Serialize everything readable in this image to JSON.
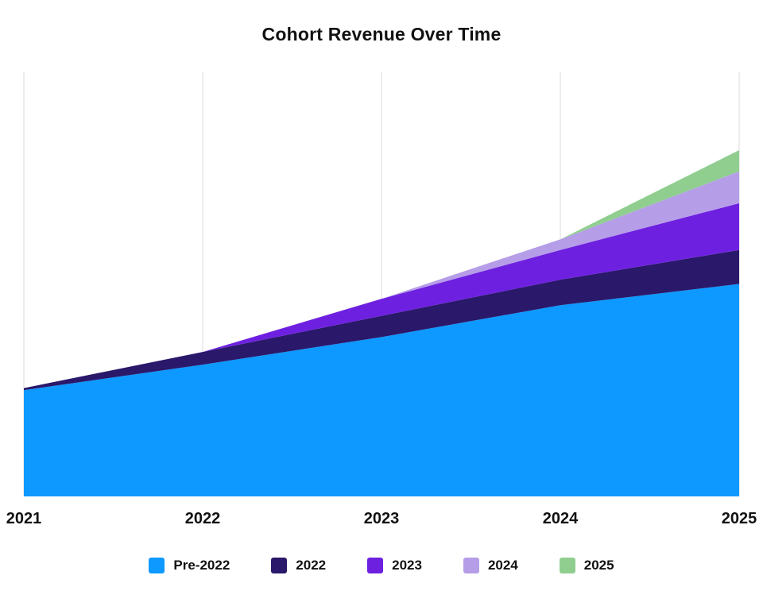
{
  "chart_data": {
    "type": "area",
    "stacked": true,
    "title": "Cohort Revenue Over Time",
    "categories": [
      "2021",
      "2022",
      "2023",
      "2024",
      "2025"
    ],
    "series": [
      {
        "name": "Pre-2022",
        "color": "#0D99FF",
        "values": [
          50,
          62,
          75,
          90,
          100
        ]
      },
      {
        "name": "2022",
        "color": "#2A186B",
        "values": [
          1,
          6,
          10,
          12,
          16
        ]
      },
      {
        "name": "2023",
        "color": "#6E20E0",
        "values": [
          0,
          0,
          8,
          14,
          22
        ]
      },
      {
        "name": "2024",
        "color": "#B59DE8",
        "values": [
          0,
          0,
          0,
          5,
          15
        ]
      },
      {
        "name": "2025",
        "color": "#90CE90",
        "values": [
          0,
          0,
          0,
          0,
          10
        ]
      }
    ],
    "xlabel": "",
    "ylabel": "",
    "ylim": [
      0,
      200
    ],
    "grid": "vertical",
    "gridline_color": "#e7e7e7",
    "legend_position": "bottom"
  }
}
